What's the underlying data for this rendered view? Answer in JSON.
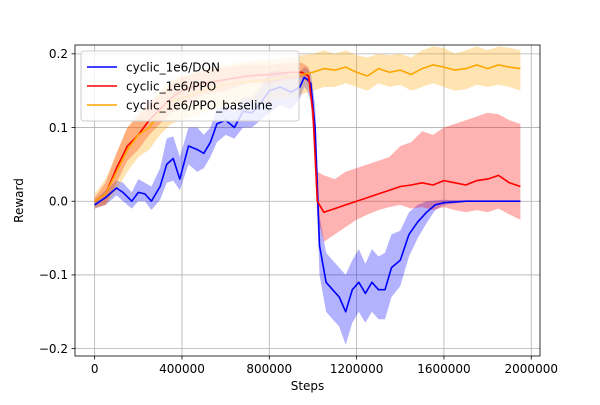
{
  "chart_data": {
    "type": "line",
    "xlabel": "Steps",
    "ylabel": "Reward",
    "xlim": [
      -90000,
      2040000
    ],
    "ylim": [
      -0.21,
      0.212
    ],
    "x_ticks": [
      0,
      400000,
      800000,
      1200000,
      1600000,
      2000000
    ],
    "x_tick_labels": [
      "0",
      "400000",
      "800000",
      "1200000",
      "1600000",
      "2000000"
    ],
    "y_ticks": [
      -0.2,
      -0.1,
      0.0,
      0.1,
      0.2
    ],
    "y_tick_labels": [
      "−0.2",
      "−0.1",
      "0.0",
      "0.1",
      "0.2"
    ],
    "grid": true,
    "legend_position": "top-left",
    "series": [
      {
        "name": "cyclic_1e6/DQN",
        "color": "#0000ff",
        "x": [
          0,
          50000,
          100000,
          130000,
          170000,
          200000,
          230000,
          260000,
          300000,
          330000,
          360000,
          390000,
          430000,
          470000,
          500000,
          530000,
          560000,
          600000,
          640000,
          680000,
          720000,
          760000,
          800000,
          850000,
          900000,
          940000,
          960000,
          975000,
          990000,
          1010000,
          1030000,
          1060000,
          1090000,
          1120000,
          1150000,
          1180000,
          1210000,
          1240000,
          1270000,
          1300000,
          1330000,
          1360000,
          1400000,
          1440000,
          1480000,
          1520000,
          1560000,
          1600000,
          1700000,
          1800000,
          1950000
        ],
        "values": [
          -0.005,
          0.005,
          0.018,
          0.012,
          0.0,
          0.012,
          0.01,
          0.0,
          0.02,
          0.05,
          0.058,
          0.03,
          0.075,
          0.07,
          0.065,
          0.08,
          0.105,
          0.11,
          0.1,
          0.122,
          0.12,
          0.133,
          0.15,
          0.155,
          0.148,
          0.155,
          0.168,
          0.165,
          0.16,
          0.1,
          -0.06,
          -0.11,
          -0.12,
          -0.13,
          -0.15,
          -0.12,
          -0.11,
          -0.125,
          -0.11,
          -0.12,
          -0.12,
          -0.09,
          -0.08,
          -0.045,
          -0.028,
          -0.015,
          -0.005,
          -0.002,
          0.0,
          0.0,
          0.0
        ],
        "lower": [
          -0.01,
          -0.005,
          0.008,
          0.0,
          -0.01,
          0.0,
          0.0,
          -0.012,
          0.002,
          0.025,
          0.028,
          0.015,
          0.05,
          0.04,
          0.045,
          0.06,
          0.08,
          0.09,
          0.085,
          0.1,
          0.1,
          0.11,
          0.12,
          0.13,
          0.125,
          0.14,
          0.155,
          0.15,
          0.135,
          0.06,
          -0.1,
          -0.15,
          -0.16,
          -0.17,
          -0.195,
          -0.165,
          -0.15,
          -0.165,
          -0.15,
          -0.16,
          -0.16,
          -0.13,
          -0.115,
          -0.075,
          -0.05,
          -0.03,
          -0.012,
          -0.005,
          -0.001,
          -0.001,
          -0.001
        ],
        "upper": [
          0.002,
          0.015,
          0.028,
          0.025,
          0.012,
          0.03,
          0.025,
          0.02,
          0.045,
          0.085,
          0.088,
          0.06,
          0.1,
          0.1,
          0.09,
          0.1,
          0.125,
          0.13,
          0.12,
          0.142,
          0.14,
          0.155,
          0.175,
          0.178,
          0.17,
          0.175,
          0.182,
          0.18,
          0.175,
          0.13,
          -0.02,
          -0.07,
          -0.08,
          -0.09,
          -0.1,
          -0.08,
          -0.065,
          -0.085,
          -0.065,
          -0.075,
          -0.07,
          -0.045,
          -0.04,
          -0.015,
          -0.005,
          0.0,
          0.001,
          0.002,
          0.001,
          0.001,
          0.001
        ]
      },
      {
        "name": "cyclic_1e6/PPO",
        "color": "#ff0000",
        "x": [
          0,
          50000,
          100000,
          150000,
          200000,
          250000,
          300000,
          350000,
          400000,
          500000,
          600000,
          700000,
          800000,
          900000,
          950000,
          980000,
          1000000,
          1020000,
          1050000,
          1100000,
          1150000,
          1200000,
          1250000,
          1300000,
          1350000,
          1400000,
          1450000,
          1500000,
          1550000,
          1600000,
          1650000,
          1700000,
          1750000,
          1800000,
          1850000,
          1900000,
          1950000
        ],
        "values": [
          0.0,
          0.01,
          0.045,
          0.075,
          0.09,
          0.11,
          0.125,
          0.14,
          0.15,
          0.16,
          0.165,
          0.17,
          0.172,
          0.175,
          0.175,
          0.17,
          0.12,
          0.0,
          -0.015,
          -0.01,
          -0.005,
          0.0,
          0.005,
          0.01,
          0.015,
          0.02,
          0.022,
          0.025,
          0.022,
          0.028,
          0.025,
          0.022,
          0.028,
          0.03,
          0.035,
          0.025,
          0.02
        ],
        "lower": [
          -0.008,
          -0.005,
          0.025,
          0.055,
          0.07,
          0.09,
          0.105,
          0.12,
          0.13,
          0.145,
          0.15,
          0.16,
          0.16,
          0.165,
          0.168,
          0.16,
          0.1,
          -0.02,
          -0.055,
          -0.045,
          -0.035,
          -0.025,
          -0.018,
          -0.012,
          -0.008,
          -0.005,
          -0.01,
          -0.008,
          -0.012,
          -0.008,
          -0.012,
          -0.015,
          -0.012,
          -0.015,
          -0.01,
          -0.018,
          -0.025
        ],
        "upper": [
          0.005,
          0.025,
          0.065,
          0.1,
          0.115,
          0.135,
          0.145,
          0.16,
          0.168,
          0.178,
          0.182,
          0.185,
          0.185,
          0.188,
          0.188,
          0.182,
          0.14,
          0.04,
          0.035,
          0.03,
          0.04,
          0.045,
          0.05,
          0.055,
          0.06,
          0.075,
          0.08,
          0.095,
          0.09,
          0.1,
          0.105,
          0.11,
          0.115,
          0.12,
          0.118,
          0.11,
          0.105
        ]
      },
      {
        "name": "cyclic_1e6/PPO_baseline",
        "color": "#ffa500",
        "x": [
          0,
          50000,
          100000,
          150000,
          200000,
          250000,
          300000,
          350000,
          400000,
          500000,
          600000,
          700000,
          800000,
          900000,
          950000,
          1000000,
          1050000,
          1100000,
          1150000,
          1200000,
          1250000,
          1300000,
          1350000,
          1400000,
          1450000,
          1500000,
          1550000,
          1600000,
          1650000,
          1700000,
          1750000,
          1800000,
          1850000,
          1900000,
          1950000
        ],
        "values": [
          0.0,
          0.01,
          0.04,
          0.07,
          0.09,
          0.1,
          0.12,
          0.135,
          0.14,
          0.15,
          0.158,
          0.162,
          0.165,
          0.17,
          0.172,
          0.175,
          0.18,
          0.178,
          0.182,
          0.175,
          0.17,
          0.18,
          0.175,
          0.178,
          0.172,
          0.18,
          0.185,
          0.182,
          0.178,
          0.18,
          0.185,
          0.18,
          0.185,
          0.182,
          0.18
        ],
        "lower": [
          -0.01,
          -0.005,
          0.015,
          0.04,
          0.06,
          0.07,
          0.09,
          0.105,
          0.11,
          0.12,
          0.13,
          0.135,
          0.135,
          0.14,
          0.145,
          0.15,
          0.155,
          0.155,
          0.16,
          0.155,
          0.15,
          0.16,
          0.155,
          0.158,
          0.15,
          0.155,
          0.16,
          0.155,
          0.15,
          0.152,
          0.158,
          0.155,
          0.158,
          0.155,
          0.15
        ],
        "upper": [
          0.01,
          0.03,
          0.065,
          0.1,
          0.12,
          0.13,
          0.15,
          0.165,
          0.17,
          0.178,
          0.185,
          0.19,
          0.192,
          0.195,
          0.198,
          0.2,
          0.205,
          0.2,
          0.205,
          0.198,
          0.195,
          0.2,
          0.198,
          0.2,
          0.195,
          0.205,
          0.21,
          0.208,
          0.2,
          0.205,
          0.21,
          0.205,
          0.21,
          0.208,
          0.205
        ]
      }
    ]
  }
}
